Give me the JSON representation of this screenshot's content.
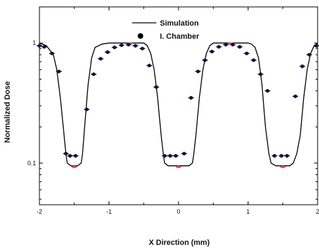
{
  "chart_data": {
    "type": "line",
    "title": "",
    "xlabel": "X Direction (mm)",
    "ylabel": "Normalized Dose",
    "xlim": [
      -2,
      2
    ],
    "ylim": [
      0.045,
      2.0
    ],
    "yscale": "log",
    "grid": false,
    "legend_position": "top-center",
    "x_ticks": [
      {
        "value": -2,
        "label": "-2"
      },
      {
        "value": -1,
        "label": "-1"
      },
      {
        "value": 0,
        "label": "0"
      },
      {
        "value": 1,
        "label": "1"
      },
      {
        "value": 2,
        "label": "2"
      }
    ],
    "y_ticks": [
      {
        "value": 1,
        "label": "1"
      },
      {
        "value": 0.1,
        "label": "0.1"
      }
    ],
    "series": [
      {
        "name": "Simulation",
        "style": "line",
        "color": "#000000",
        "x": [
          -2.0,
          -1.9,
          -1.8,
          -1.75,
          -1.7,
          -1.65,
          -1.62,
          -1.6,
          -1.55,
          -1.5,
          -1.45,
          -1.4,
          -1.38,
          -1.35,
          -1.3,
          -1.25,
          -1.2,
          -1.1,
          -1.0,
          -0.9,
          -0.7,
          -0.5,
          -0.45,
          -0.4,
          -0.35,
          -0.3,
          -0.25,
          -0.22,
          -0.2,
          -0.15,
          -0.1,
          0.0,
          0.1,
          0.15,
          0.2,
          0.22,
          0.25,
          0.3,
          0.35,
          0.4,
          0.45,
          0.5,
          0.7,
          0.9,
          1.0,
          1.05,
          1.1,
          1.15,
          1.2,
          1.25,
          1.3,
          1.33,
          1.4,
          1.5,
          1.6,
          1.65,
          1.7,
          1.75,
          1.8,
          1.85,
          1.9,
          1.95,
          2.0
        ],
        "values": [
          1.0,
          0.95,
          0.8,
          0.6,
          0.35,
          0.18,
          0.12,
          0.1,
          0.095,
          0.095,
          0.095,
          0.1,
          0.12,
          0.2,
          0.45,
          0.75,
          0.92,
          0.98,
          1.0,
          1.0,
          1.0,
          1.0,
          0.95,
          0.82,
          0.6,
          0.35,
          0.17,
          0.12,
          0.1,
          0.095,
          0.095,
          0.095,
          0.095,
          0.095,
          0.1,
          0.12,
          0.17,
          0.35,
          0.6,
          0.82,
          0.95,
          1.0,
          1.0,
          1.0,
          1.0,
          0.98,
          0.92,
          0.75,
          0.45,
          0.2,
          0.12,
          0.1,
          0.095,
          0.095,
          0.095,
          0.1,
          0.12,
          0.17,
          0.35,
          0.6,
          0.82,
          0.95,
          1.0
        ]
      },
      {
        "name": "I. Chamber",
        "style": "points",
        "color": "#10103a",
        "x": [
          -2.0,
          -1.93,
          -1.82,
          -1.72,
          -1.62,
          -1.56,
          -1.48,
          -1.32,
          -1.22,
          -1.12,
          -1.02,
          -0.92,
          -0.82,
          -0.72,
          -0.62,
          -0.52,
          -0.42,
          -0.32,
          -0.2,
          -0.12,
          -0.04,
          0.08,
          0.18,
          0.28,
          0.38,
          0.48,
          0.58,
          0.68,
          0.78,
          0.88,
          0.98,
          1.08,
          1.18,
          1.28,
          1.38,
          1.48,
          1.56,
          1.68,
          1.78,
          1.88,
          1.98
        ],
        "values": [
          0.95,
          0.93,
          0.82,
          0.58,
          0.12,
          0.115,
          0.115,
          0.28,
          0.55,
          0.74,
          0.84,
          0.92,
          0.96,
          0.97,
          0.95,
          0.9,
          0.65,
          0.43,
          0.115,
          0.115,
          0.115,
          0.12,
          0.35,
          0.58,
          0.72,
          0.85,
          0.93,
          0.97,
          0.97,
          0.93,
          0.82,
          0.72,
          0.55,
          0.4,
          0.115,
          0.115,
          0.115,
          0.36,
          0.64,
          0.8,
          0.95
        ]
      }
    ],
    "annotations": [
      {
        "x": -1.5,
        "y": 0.093,
        "color": "#e05050"
      },
      {
        "x": -0.7,
        "y": 0.99,
        "color": "#e05050"
      },
      {
        "x": 0.0,
        "y": 0.093,
        "color": "#e05050"
      },
      {
        "x": 0.75,
        "y": 0.99,
        "color": "#e05050"
      },
      {
        "x": 1.5,
        "y": 0.093,
        "color": "#e05050"
      }
    ]
  }
}
